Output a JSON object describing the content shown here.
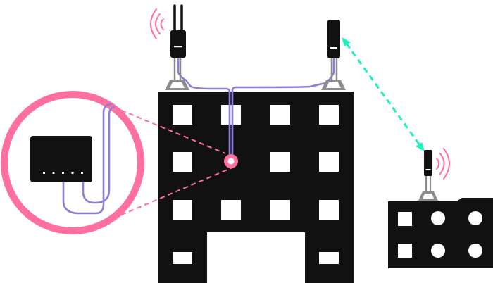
{
  "colors": {
    "background": "#ffffff",
    "building": "#111111",
    "window": "#ffffff",
    "cable": "#8f7ed8",
    "accent_pink": "#ff6f9f",
    "link_green": "#20f0c0",
    "mount_gray": "#8c8c8c",
    "device": "#111111"
  },
  "icons": {
    "left_radio": "dual-antenna-radio-icon",
    "right_radio": "sector-radio-icon",
    "remote_radio": "remote-radio-icon",
    "signal_waves": "wifi-signal-icon",
    "switch": "network-switch-icon",
    "cable_entry": "cable-entry-port-icon",
    "wireless_link": "bidirectional-arrow-icon"
  },
  "switch": {
    "port_count": 5
  }
}
